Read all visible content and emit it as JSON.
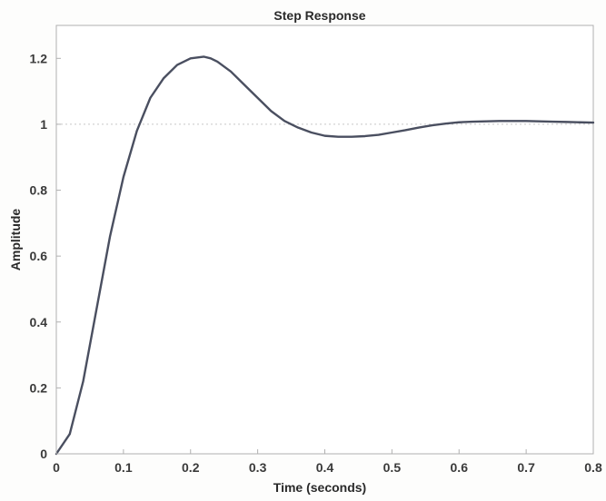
{
  "chart_data": {
    "type": "line",
    "title": "Step Response",
    "xlabel": "Time (seconds)",
    "ylabel": "Amplitude",
    "xlim": [
      0,
      0.8
    ],
    "ylim": [
      0,
      1.3
    ],
    "x_ticks": [
      "0",
      "0.1",
      "0.2",
      "0.3",
      "0.4",
      "0.5",
      "0.6",
      "0.7",
      "0.8"
    ],
    "y_ticks": [
      "0",
      "0.2",
      "0.4",
      "0.6",
      "0.8",
      "1",
      "1.2"
    ],
    "grid": false,
    "reference_line": {
      "y": 1,
      "style": "dotted"
    },
    "series": [
      {
        "x": [
          0,
          0.02,
          0.04,
          0.06,
          0.08,
          0.1,
          0.12,
          0.14,
          0.16,
          0.18,
          0.2,
          0.22,
          0.23,
          0.24,
          0.26,
          0.28,
          0.3,
          0.32,
          0.34,
          0.36,
          0.38,
          0.4,
          0.42,
          0.44,
          0.46,
          0.48,
          0.5,
          0.52,
          0.54,
          0.56,
          0.58,
          0.6,
          0.62,
          0.64,
          0.66,
          0.68,
          0.7,
          0.72,
          0.74,
          0.76,
          0.78,
          0.8
        ],
        "y": [
          0,
          0.06,
          0.22,
          0.44,
          0.66,
          0.84,
          0.98,
          1.08,
          1.14,
          1.18,
          1.2,
          1.205,
          1.2,
          1.19,
          1.16,
          1.12,
          1.08,
          1.04,
          1.01,
          0.99,
          0.975,
          0.965,
          0.962,
          0.962,
          0.964,
          0.968,
          0.975,
          0.982,
          0.99,
          0.997,
          1.002,
          1.006,
          1.008,
          1.009,
          1.01,
          1.01,
          1.01,
          1.009,
          1.008,
          1.007,
          1.006,
          1.005
        ]
      }
    ],
    "colors": {
      "line": "#4a4f60",
      "reference": "#c8c8c8",
      "axes": "#b0b0b0",
      "text": "#3a3a3a"
    }
  }
}
